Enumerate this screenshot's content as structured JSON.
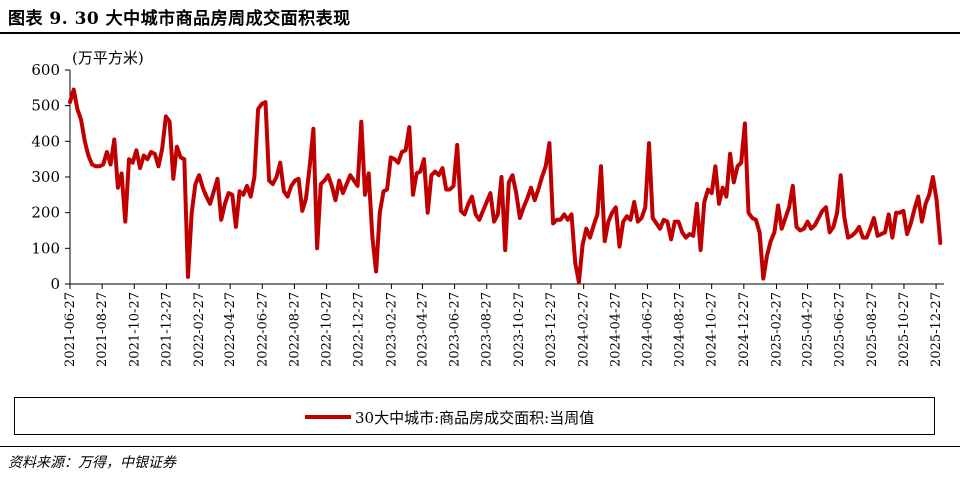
{
  "title": "图表 9. 30 大中城市商品房周成交面积表现",
  "source": "资料来源：万得，中银证券",
  "chart_data": {
    "type": "line",
    "ylabel": "(万平方米)",
    "ylim": [
      0,
      600
    ],
    "yticks": [
      0,
      100,
      200,
      300,
      400,
      500,
      600
    ],
    "xlim": [
      "2021-06-27",
      "2026-01-11"
    ],
    "xticks": [
      "2021-06-27",
      "2021-08-27",
      "2021-10-27",
      "2021-12-27",
      "2022-02-27",
      "2022-04-27",
      "2022-06-27",
      "2022-08-27",
      "2022-10-27",
      "2022-12-27",
      "2023-02-27",
      "2023-04-27",
      "2023-06-27",
      "2023-08-27",
      "2023-10-27",
      "2023-12-27",
      "2024-02-27",
      "2024-04-27",
      "2024-06-27",
      "2024-08-27",
      "2024-10-27",
      "2024-12-27",
      "2025-02-27",
      "2025-04-27",
      "2025-06-27",
      "2025-08-27",
      "2025-10-27",
      "2025-12-27"
    ],
    "grid": false,
    "legend_position": "bottom",
    "color": "#c00000",
    "series": [
      {
        "name": "30大中城市:商品房成交面积:当周值",
        "points": [
          [
            "2021-06-27",
            510
          ],
          [
            "2021-07-04",
            545
          ],
          [
            "2021-07-11",
            490
          ],
          [
            "2021-07-18",
            460
          ],
          [
            "2021-07-25",
            400
          ],
          [
            "2021-08-01",
            360
          ],
          [
            "2021-08-08",
            335
          ],
          [
            "2021-08-15",
            330
          ],
          [
            "2021-08-22",
            330
          ],
          [
            "2021-08-29",
            335
          ],
          [
            "2021-09-05",
            370
          ],
          [
            "2021-09-12",
            335
          ],
          [
            "2021-09-19",
            405
          ],
          [
            "2021-09-26",
            270
          ],
          [
            "2021-10-03",
            310
          ],
          [
            "2021-10-10",
            175
          ],
          [
            "2021-10-17",
            350
          ],
          [
            "2021-10-24",
            340
          ],
          [
            "2021-10-31",
            375
          ],
          [
            "2021-11-07",
            325
          ],
          [
            "2021-11-14",
            360
          ],
          [
            "2021-11-21",
            350
          ],
          [
            "2021-11-28",
            370
          ],
          [
            "2021-12-05",
            365
          ],
          [
            "2021-12-12",
            330
          ],
          [
            "2021-12-19",
            380
          ],
          [
            "2021-12-26",
            470
          ],
          [
            "2022-01-02",
            455
          ],
          [
            "2022-01-09",
            295
          ],
          [
            "2022-01-16",
            385
          ],
          [
            "2022-01-23",
            355
          ],
          [
            "2022-01-30",
            350
          ],
          [
            "2022-02-06",
            20
          ],
          [
            "2022-02-13",
            200
          ],
          [
            "2022-02-20",
            280
          ],
          [
            "2022-02-27",
            305
          ],
          [
            "2022-03-06",
            270
          ],
          [
            "2022-03-13",
            245
          ],
          [
            "2022-03-20",
            225
          ],
          [
            "2022-03-27",
            260
          ],
          [
            "2022-04-03",
            295
          ],
          [
            "2022-04-10",
            180
          ],
          [
            "2022-04-17",
            225
          ],
          [
            "2022-04-24",
            255
          ],
          [
            "2022-05-01",
            250
          ],
          [
            "2022-05-08",
            160
          ],
          [
            "2022-05-15",
            260
          ],
          [
            "2022-05-22",
            250
          ],
          [
            "2022-05-29",
            275
          ],
          [
            "2022-06-05",
            245
          ],
          [
            "2022-06-12",
            300
          ],
          [
            "2022-06-19",
            490
          ],
          [
            "2022-06-26",
            505
          ],
          [
            "2022-07-03",
            510
          ],
          [
            "2022-07-10",
            290
          ],
          [
            "2022-07-17",
            280
          ],
          [
            "2022-07-24",
            300
          ],
          [
            "2022-07-31",
            340
          ],
          [
            "2022-08-07",
            260
          ],
          [
            "2022-08-14",
            245
          ],
          [
            "2022-08-21",
            275
          ],
          [
            "2022-08-28",
            290
          ],
          [
            "2022-09-04",
            295
          ],
          [
            "2022-09-11",
            205
          ],
          [
            "2022-09-18",
            240
          ],
          [
            "2022-09-25",
            330
          ],
          [
            "2022-10-02",
            435
          ],
          [
            "2022-10-09",
            100
          ],
          [
            "2022-10-16",
            280
          ],
          [
            "2022-10-23",
            290
          ],
          [
            "2022-10-30",
            305
          ],
          [
            "2022-11-06",
            275
          ],
          [
            "2022-11-13",
            235
          ],
          [
            "2022-11-20",
            290
          ],
          [
            "2022-11-27",
            255
          ],
          [
            "2022-12-04",
            280
          ],
          [
            "2022-12-11",
            305
          ],
          [
            "2022-12-18",
            290
          ],
          [
            "2022-12-25",
            275
          ],
          [
            "2023-01-01",
            455
          ],
          [
            "2023-01-08",
            250
          ],
          [
            "2023-01-15",
            310
          ],
          [
            "2023-01-22",
            130
          ],
          [
            "2023-01-29",
            35
          ],
          [
            "2023-02-05",
            200
          ],
          [
            "2023-02-12",
            260
          ],
          [
            "2023-02-19",
            265
          ],
          [
            "2023-02-26",
            355
          ],
          [
            "2023-03-05",
            350
          ],
          [
            "2023-03-12",
            340
          ],
          [
            "2023-03-19",
            370
          ],
          [
            "2023-03-26",
            375
          ],
          [
            "2023-04-02",
            440
          ],
          [
            "2023-04-09",
            250
          ],
          [
            "2023-04-16",
            310
          ],
          [
            "2023-04-23",
            315
          ],
          [
            "2023-04-30",
            350
          ],
          [
            "2023-05-07",
            200
          ],
          [
            "2023-05-14",
            305
          ],
          [
            "2023-05-21",
            315
          ],
          [
            "2023-05-28",
            305
          ],
          [
            "2023-06-04",
            325
          ],
          [
            "2023-06-11",
            265
          ],
          [
            "2023-06-18",
            265
          ],
          [
            "2023-06-25",
            275
          ],
          [
            "2023-07-02",
            390
          ],
          [
            "2023-07-09",
            205
          ],
          [
            "2023-07-16",
            195
          ],
          [
            "2023-07-23",
            225
          ],
          [
            "2023-07-30",
            245
          ],
          [
            "2023-08-06",
            195
          ],
          [
            "2023-08-13",
            180
          ],
          [
            "2023-08-20",
            205
          ],
          [
            "2023-08-27",
            230
          ],
          [
            "2023-09-03",
            255
          ],
          [
            "2023-09-10",
            175
          ],
          [
            "2023-09-17",
            195
          ],
          [
            "2023-09-24",
            300
          ],
          [
            "2023-10-01",
            95
          ],
          [
            "2023-10-08",
            285
          ],
          [
            "2023-10-15",
            305
          ],
          [
            "2023-10-22",
            255
          ],
          [
            "2023-10-29",
            185
          ],
          [
            "2023-11-05",
            215
          ],
          [
            "2023-11-12",
            240
          ],
          [
            "2023-11-19",
            270
          ],
          [
            "2023-11-26",
            235
          ],
          [
            "2023-12-03",
            265
          ],
          [
            "2023-12-10",
            300
          ],
          [
            "2023-12-17",
            330
          ],
          [
            "2023-12-24",
            395
          ],
          [
            "2023-12-31",
            170
          ],
          [
            "2024-01-07",
            180
          ],
          [
            "2024-01-14",
            180
          ],
          [
            "2024-01-21",
            195
          ],
          [
            "2024-01-28",
            180
          ],
          [
            "2024-02-04",
            195
          ],
          [
            "2024-02-11",
            60
          ],
          [
            "2024-02-18",
            5
          ],
          [
            "2024-02-25",
            110
          ],
          [
            "2024-03-03",
            155
          ],
          [
            "2024-03-10",
            130
          ],
          [
            "2024-03-17",
            165
          ],
          [
            "2024-03-24",
            195
          ],
          [
            "2024-03-31",
            330
          ],
          [
            "2024-04-07",
            120
          ],
          [
            "2024-04-14",
            175
          ],
          [
            "2024-04-21",
            200
          ],
          [
            "2024-04-28",
            215
          ],
          [
            "2024-05-05",
            105
          ],
          [
            "2024-05-12",
            175
          ],
          [
            "2024-05-19",
            190
          ],
          [
            "2024-05-26",
            180
          ],
          [
            "2024-06-02",
            230
          ],
          [
            "2024-06-09",
            175
          ],
          [
            "2024-06-16",
            185
          ],
          [
            "2024-06-23",
            215
          ],
          [
            "2024-06-30",
            395
          ],
          [
            "2024-07-07",
            185
          ],
          [
            "2024-07-14",
            170
          ],
          [
            "2024-07-21",
            155
          ],
          [
            "2024-07-28",
            180
          ],
          [
            "2024-08-04",
            175
          ],
          [
            "2024-08-11",
            125
          ],
          [
            "2024-08-18",
            175
          ],
          [
            "2024-08-25",
            175
          ],
          [
            "2024-09-01",
            145
          ],
          [
            "2024-09-08",
            130
          ],
          [
            "2024-09-15",
            140
          ],
          [
            "2024-09-22",
            135
          ],
          [
            "2024-09-29",
            225
          ],
          [
            "2024-10-06",
            95
          ],
          [
            "2024-10-13",
            230
          ],
          [
            "2024-10-20",
            265
          ],
          [
            "2024-10-27",
            255
          ],
          [
            "2024-11-03",
            330
          ],
          [
            "2024-11-10",
            225
          ],
          [
            "2024-11-17",
            270
          ],
          [
            "2024-11-24",
            245
          ],
          [
            "2024-12-01",
            365
          ],
          [
            "2024-12-08",
            285
          ],
          [
            "2024-12-15",
            330
          ],
          [
            "2024-12-22",
            340
          ],
          [
            "2024-12-29",
            450
          ],
          [
            "2025-01-05",
            200
          ],
          [
            "2025-01-12",
            185
          ],
          [
            "2025-01-19",
            180
          ],
          [
            "2025-01-26",
            145
          ],
          [
            "2025-02-02",
            15
          ],
          [
            "2025-02-09",
            80
          ],
          [
            "2025-02-16",
            120
          ],
          [
            "2025-02-23",
            145
          ],
          [
            "2025-03-02",
            220
          ],
          [
            "2025-03-09",
            155
          ],
          [
            "2025-03-16",
            185
          ],
          [
            "2025-03-23",
            215
          ],
          [
            "2025-03-30",
            275
          ],
          [
            "2025-04-06",
            160
          ],
          [
            "2025-04-13",
            150
          ],
          [
            "2025-04-20",
            155
          ],
          [
            "2025-04-27",
            175
          ],
          [
            "2025-05-04",
            155
          ],
          [
            "2025-05-11",
            165
          ],
          [
            "2025-05-18",
            185
          ],
          [
            "2025-05-25",
            205
          ],
          [
            "2025-06-01",
            215
          ],
          [
            "2025-06-08",
            145
          ],
          [
            "2025-06-15",
            160
          ],
          [
            "2025-06-22",
            200
          ],
          [
            "2025-06-29",
            305
          ],
          [
            "2025-07-06",
            185
          ],
          [
            "2025-07-13",
            130
          ],
          [
            "2025-07-20",
            135
          ],
          [
            "2025-07-27",
            145
          ],
          [
            "2025-08-03",
            160
          ],
          [
            "2025-08-10",
            130
          ],
          [
            "2025-08-17",
            130
          ],
          [
            "2025-08-24",
            155
          ],
          [
            "2025-08-31",
            185
          ],
          [
            "2025-09-07",
            135
          ],
          [
            "2025-09-14",
            140
          ],
          [
            "2025-09-21",
            145
          ],
          [
            "2025-09-28",
            195
          ],
          [
            "2025-10-05",
            130
          ],
          [
            "2025-10-12",
            200
          ],
          [
            "2025-10-19",
            200
          ],
          [
            "2025-10-26",
            205
          ],
          [
            "2025-11-02",
            140
          ],
          [
            "2025-11-09",
            170
          ],
          [
            "2025-11-16",
            210
          ],
          [
            "2025-11-23",
            245
          ],
          [
            "2025-11-30",
            175
          ],
          [
            "2025-12-07",
            225
          ],
          [
            "2025-12-14",
            250
          ],
          [
            "2025-12-21",
            300
          ],
          [
            "2025-12-28",
            235
          ],
          [
            "2026-01-04",
            115
          ]
        ]
      }
    ]
  }
}
